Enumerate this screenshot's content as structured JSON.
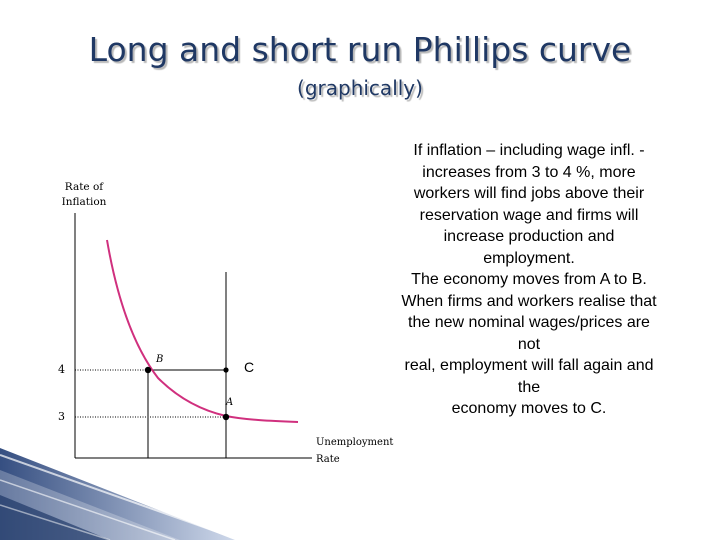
{
  "slide": {
    "title": "Long and short run Phillips curve",
    "subtitle": "(graphically)"
  },
  "graph": {
    "y_axis_label_line1": "Rate of",
    "y_axis_label_line2": "Inflation",
    "x_axis_label_line1": "Unemployment",
    "x_axis_label_line2": "Rate",
    "y_ticks": [
      "4",
      "3"
    ],
    "points": {
      "a": "A",
      "b": "B",
      "c": "C"
    },
    "colors": {
      "curve": "#d0307e",
      "axes": "#000000"
    }
  },
  "text_lines": [
    "If inflation – including wage infl. -",
    "increases from 3 to 4 %, more",
    "workers will find jobs above their",
    "reservation wage and firms will",
    "increase production and",
    "employment.",
    "The economy moves from A to B.",
    "When firms and workers realise that",
    "the new nominal wages/prices are",
    "not",
    "real, employment will fall again and",
    "the",
    "economy moves to C."
  ]
}
